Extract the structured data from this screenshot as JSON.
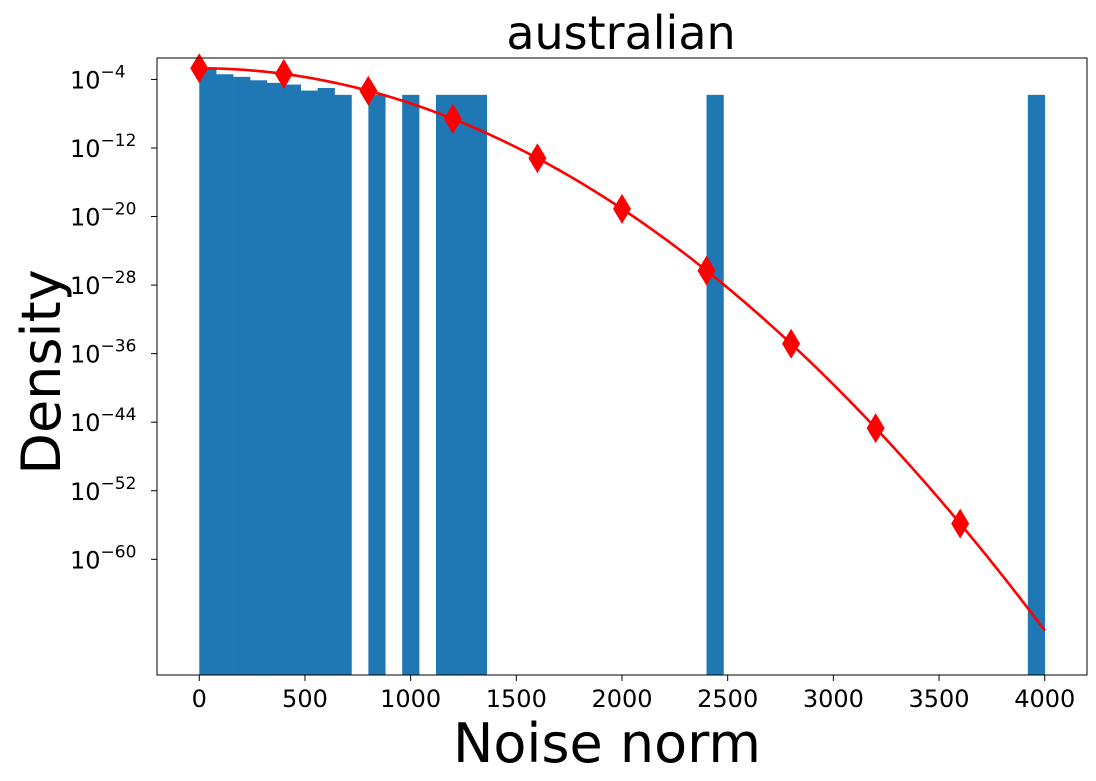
{
  "chart_data": {
    "type": "bar",
    "title": "australian",
    "xlabel": "Noise norm",
    "ylabel": "Density",
    "y_scale": "log",
    "xlim": [
      -200,
      4200
    ],
    "ylim_log10": [
      -73.5,
      -1.5
    ],
    "x_ticks": [
      {
        "value": 0,
        "label": "0"
      },
      {
        "value": 500,
        "label": "500"
      },
      {
        "value": 1000,
        "label": "1000"
      },
      {
        "value": 1500,
        "label": "1500"
      },
      {
        "value": 2000,
        "label": "2000"
      },
      {
        "value": 2500,
        "label": "2500"
      },
      {
        "value": 3000,
        "label": "3000"
      },
      {
        "value": 3500,
        "label": "3500"
      },
      {
        "value": 4000,
        "label": "4000"
      }
    ],
    "y_ticks": [
      {
        "exponent": -4,
        "base": "10",
        "sup": "−4"
      },
      {
        "exponent": -12,
        "base": "10",
        "sup": "−12"
      },
      {
        "exponent": -20,
        "base": "10",
        "sup": "−20"
      },
      {
        "exponent": -28,
        "base": "10",
        "sup": "−28"
      },
      {
        "exponent": -36,
        "base": "10",
        "sup": "−36"
      },
      {
        "exponent": -44,
        "base": "10",
        "sup": "−44"
      },
      {
        "exponent": -52,
        "base": "10",
        "sup": "−52"
      },
      {
        "exponent": -60,
        "base": "10",
        "sup": "−60"
      }
    ],
    "histogram": {
      "color": "#1f77b4",
      "bin_width": 80,
      "bins": [
        {
          "x0": 0,
          "density_log10": -2.8
        },
        {
          "x0": 80,
          "density_log10": -3.4
        },
        {
          "x0": 160,
          "density_log10": -3.7
        },
        {
          "x0": 240,
          "density_log10": -4.1
        },
        {
          "x0": 320,
          "density_log10": -4.4
        },
        {
          "x0": 400,
          "density_log10": -4.6
        },
        {
          "x0": 480,
          "density_log10": -5.3
        },
        {
          "x0": 560,
          "density_log10": -5.0
        },
        {
          "x0": 640,
          "density_log10": -5.8
        },
        {
          "x0": 800,
          "density_log10": -5.8
        },
        {
          "x0": 960,
          "density_log10": -5.8
        },
        {
          "x0": 1120,
          "density_log10": -5.8
        },
        {
          "x0": 1200,
          "density_log10": -5.8
        },
        {
          "x0": 1280,
          "density_log10": -5.8
        },
        {
          "x0": 2400,
          "density_log10": -5.8
        },
        {
          "x0": 3920,
          "density_log10": -5.8
        }
      ]
    },
    "fit_curve": {
      "color": "#ff0000",
      "x_range": [
        0,
        4000
      ],
      "log10_density_at_0": -2.7,
      "log10_density_decay_coefficient": 4.1e-06
    },
    "markers": {
      "color": "#ff0000",
      "shape": "diamond",
      "x": [
        0,
        400,
        800,
        1200,
        1600,
        2000,
        2400,
        2800,
        3200,
        3600
      ]
    }
  }
}
